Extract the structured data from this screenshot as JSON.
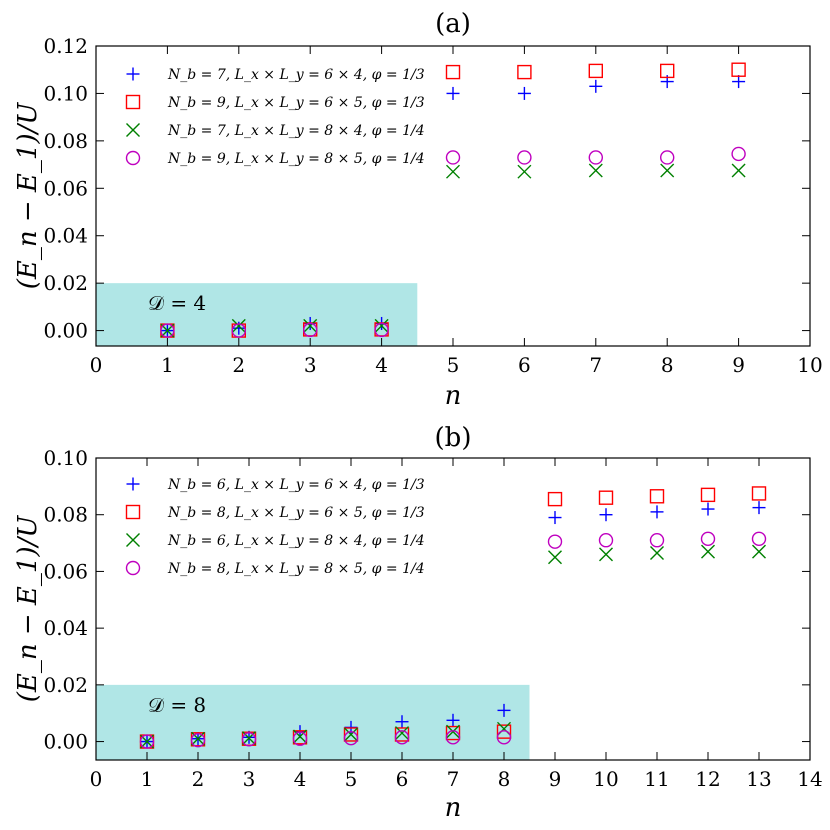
{
  "colors": {
    "plus": "#0000ff",
    "square": "#ff0000",
    "cross": "#008000",
    "circle": "#bf00bf",
    "region": "#b0e6e6"
  },
  "chart_data": [
    {
      "type": "scatter",
      "title": "(a)",
      "xlabel": "n",
      "ylabel": "(E_n − E_1)/U",
      "xlim": [
        0,
        10
      ],
      "ylim": [
        -0.0065,
        0.12
      ],
      "xticks": [
        "0",
        "1",
        "2",
        "3",
        "4",
        "5",
        "6",
        "7",
        "8",
        "9",
        "10"
      ],
      "yticks": [
        "0.00",
        "0.02",
        "0.04",
        "0.06",
        "0.08",
        "0.10",
        "0.12"
      ],
      "region": {
        "x_end": 4.5,
        "y_top": 0.02,
        "label": "𝒟 = 4"
      },
      "series": [
        {
          "name": "N_b = 7, L_x × L_y = 6 × 4, φ = 1/3",
          "marker": "plus",
          "x": [
            1,
            2,
            3,
            4,
            5,
            6,
            7,
            8,
            9
          ],
          "y": [
            0.0,
            0.001,
            0.003,
            0.003,
            0.1,
            0.1,
            0.103,
            0.105,
            0.105
          ]
        },
        {
          "name": "N_b = 9, L_x × L_y = 6 × 5, φ = 1/3",
          "marker": "square",
          "x": [
            1,
            2,
            3,
            4,
            5,
            6,
            7,
            8,
            9
          ],
          "y": [
            0.0,
            0.0,
            0.0005,
            0.0005,
            0.109,
            0.109,
            0.1095,
            0.1095,
            0.11
          ]
        },
        {
          "name": "N_b = 7, L_x × L_y = 8 × 4, φ = 1/4",
          "marker": "cross",
          "x": [
            1,
            2,
            3,
            4,
            5,
            6,
            7,
            8,
            9
          ],
          "y": [
            0.0,
            0.002,
            0.002,
            0.002,
            0.067,
            0.067,
            0.0675,
            0.0675,
            0.0675
          ]
        },
        {
          "name": "N_b = 9, L_x × L_y = 8 × 5, φ = 1/4",
          "marker": "circle",
          "x": [
            1,
            2,
            3,
            4,
            5,
            6,
            7,
            8,
            9
          ],
          "y": [
            0.0,
            0.0,
            0.0003,
            0.0003,
            0.073,
            0.073,
            0.073,
            0.073,
            0.0745
          ]
        }
      ]
    },
    {
      "type": "scatter",
      "title": "(b)",
      "xlabel": "n",
      "ylabel": "(E_n − E_1)/U",
      "xlim": [
        0,
        14
      ],
      "ylim": [
        -0.0065,
        0.1
      ],
      "xticks": [
        "0",
        "1",
        "2",
        "3",
        "4",
        "5",
        "6",
        "7",
        "8",
        "9",
        "10",
        "11",
        "12",
        "13",
        "14"
      ],
      "yticks": [
        "0.00",
        "0.02",
        "0.04",
        "0.06",
        "0.08",
        "0.10"
      ],
      "region": {
        "x_end": 8.5,
        "y_top": 0.02,
        "label": "𝒟 = 8"
      },
      "series": [
        {
          "name": "N_b = 6, L_x × L_y = 6 × 4, φ = 1/3",
          "marker": "plus",
          "x": [
            1,
            2,
            3,
            4,
            5,
            6,
            7,
            8,
            9,
            10,
            11,
            12,
            13
          ],
          "y": [
            0.0,
            0.001,
            0.0015,
            0.0035,
            0.005,
            0.007,
            0.0075,
            0.011,
            0.079,
            0.08,
            0.081,
            0.082,
            0.0825
          ]
        },
        {
          "name": "N_b = 8, L_x × L_y = 6 × 5, φ = 1/3",
          "marker": "square",
          "x": [
            1,
            2,
            3,
            4,
            5,
            6,
            7,
            8,
            9,
            10,
            11,
            12,
            13
          ],
          "y": [
            0.0,
            0.0008,
            0.001,
            0.0015,
            0.0025,
            0.0025,
            0.003,
            0.0035,
            0.0855,
            0.086,
            0.0865,
            0.087,
            0.0875
          ]
        },
        {
          "name": "N_b = 6, L_x × L_y = 8 × 4, φ = 1/4",
          "marker": "cross",
          "x": [
            1,
            2,
            3,
            4,
            5,
            6,
            7,
            8,
            9,
            10,
            11,
            12,
            13
          ],
          "y": [
            0.0,
            0.001,
            0.0012,
            0.0018,
            0.0025,
            0.003,
            0.0035,
            0.0045,
            0.065,
            0.066,
            0.0665,
            0.067,
            0.067
          ]
        },
        {
          "name": "N_b = 8, L_x × L_y = 8 × 5, φ = 1/4",
          "marker": "circle",
          "x": [
            1,
            2,
            3,
            4,
            5,
            6,
            7,
            8,
            9,
            10,
            11,
            12,
            13
          ],
          "y": [
            0.0,
            0.0005,
            0.0008,
            0.001,
            0.0012,
            0.0015,
            0.0015,
            0.0015,
            0.0705,
            0.071,
            0.071,
            0.0715,
            0.0715
          ]
        }
      ]
    }
  ]
}
